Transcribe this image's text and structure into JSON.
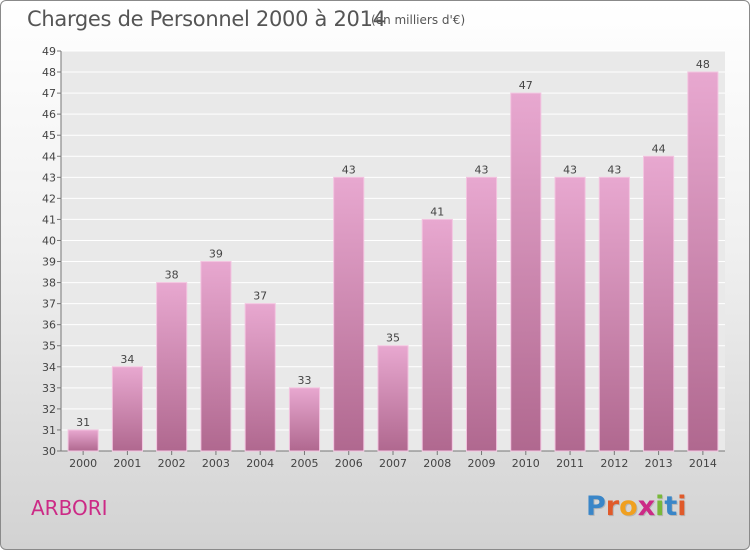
{
  "header": {
    "title": "Charges de Personnel 2000 à 2014",
    "subtitle": "(en milliers d'€)"
  },
  "footer": {
    "place": "ARBORI",
    "brand": "Proxiti"
  },
  "colors": {
    "bar_top": "#e8a8d0",
    "bar_bottom": "#b0688f",
    "place_text": "#cc2a86",
    "brand_letters": [
      "#3a86c8",
      "#e05a2a",
      "#f0a020",
      "#cc2a86",
      "#79b83a",
      "#3a86c8",
      "#e05a2a"
    ]
  },
  "chart_data": {
    "type": "bar",
    "title": "Charges de Personnel 2000 à 2014",
    "subtitle": "(en milliers d'€)",
    "categories": [
      "2000",
      "2001",
      "2002",
      "2003",
      "2004",
      "2005",
      "2006",
      "2007",
      "2008",
      "2009",
      "2010",
      "2011",
      "2012",
      "2013",
      "2014"
    ],
    "values": [
      31,
      34,
      38,
      39,
      37,
      33,
      43,
      35,
      41,
      43,
      47,
      43,
      43,
      44,
      48
    ],
    "ylim": [
      30,
      49
    ],
    "yticks": [
      30,
      31,
      32,
      33,
      34,
      35,
      36,
      37,
      38,
      39,
      40,
      41,
      42,
      43,
      44,
      45,
      46,
      47,
      48,
      49
    ],
    "grid": true,
    "legend": "none"
  }
}
